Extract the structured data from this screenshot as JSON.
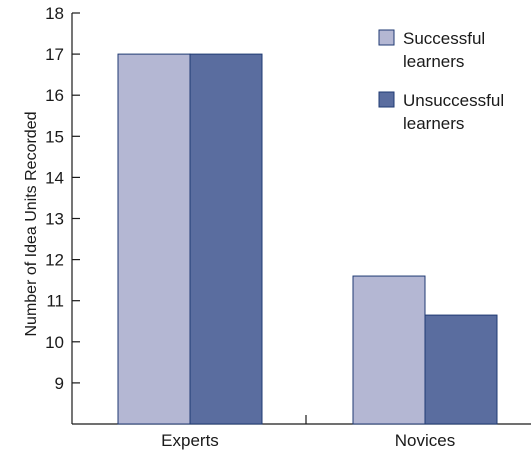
{
  "chart_data": {
    "type": "bar",
    "categories": [
      "Experts",
      "Novices"
    ],
    "series": [
      {
        "name": "Successful learners",
        "values": [
          17,
          11.6
        ],
        "color": "#b4b7d3"
      },
      {
        "name": "Unsuccessful learners",
        "values": [
          17,
          10.65
        ],
        "color": "#5a6d9f"
      }
    ],
    "ylabel": "Number of Idea Units Recorded",
    "ylim": [
      8,
      18
    ],
    "yticks": [
      9,
      10,
      11,
      12,
      13,
      14,
      15,
      16,
      17,
      18
    ],
    "legend": {
      "placement": "top-right",
      "entries": [
        {
          "lines": [
            "Successful",
            "learners"
          ]
        },
        {
          "lines": [
            "Unsuccessful",
            "learners"
          ]
        }
      ]
    },
    "grid": false
  }
}
